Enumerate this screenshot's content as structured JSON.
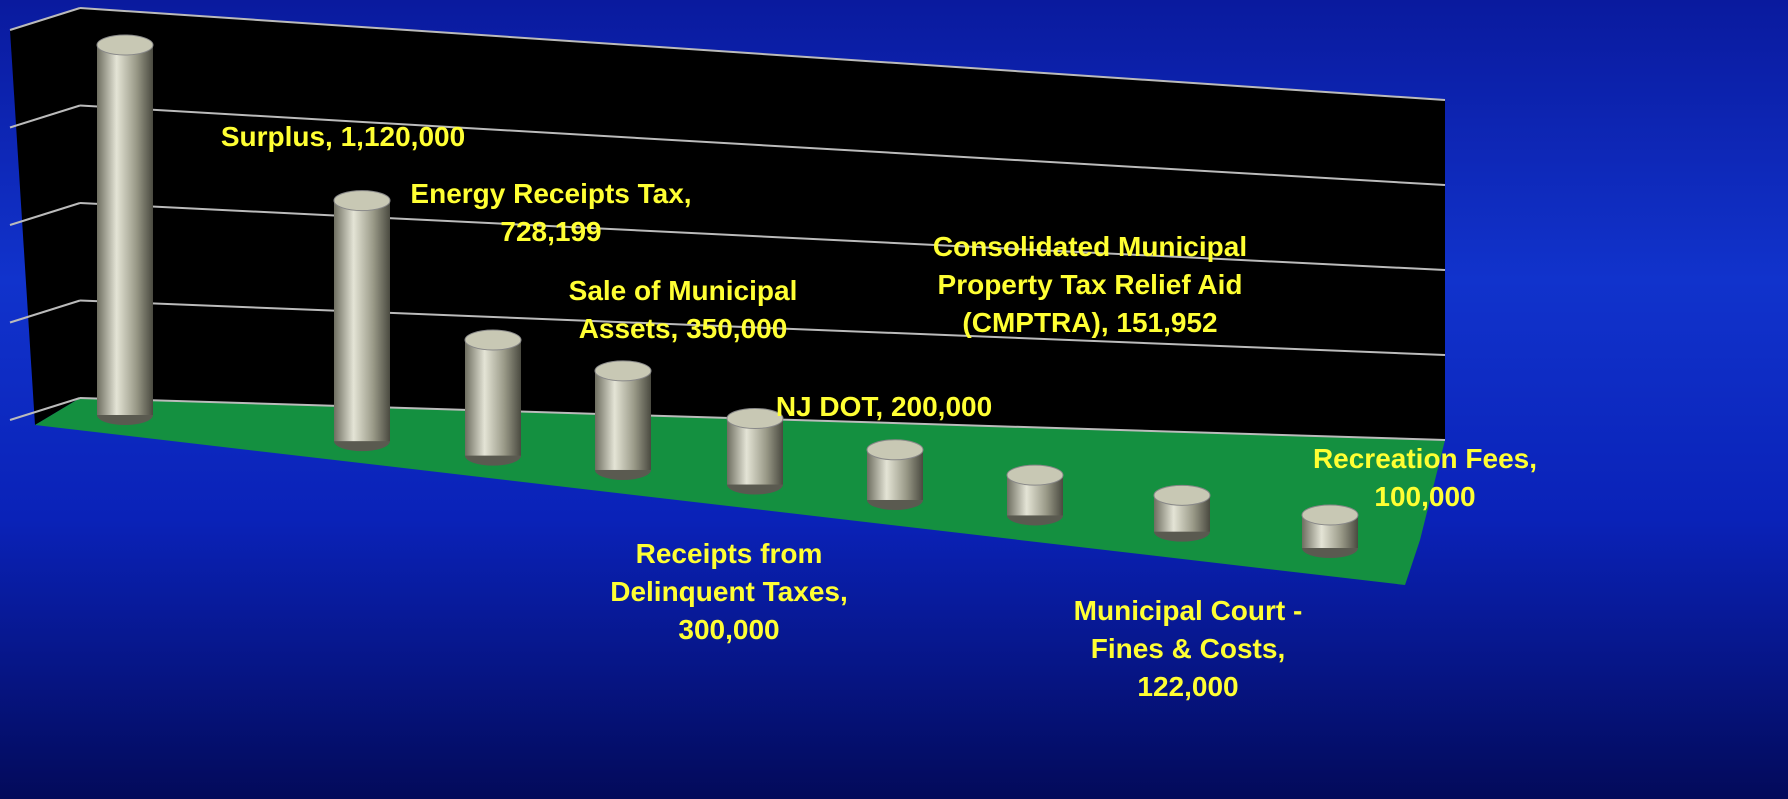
{
  "chart_data": {
    "type": "cylinder",
    "values": [
      1120000,
      728199,
      350000,
      300000,
      200000,
      151952,
      122000,
      110000,
      100000
    ],
    "value_labels": [
      "Surplus, 1,120,000",
      "Energy Receipts Tax, 728,199",
      "Sale of Municipal Assets, 350,000",
      "Receipts from Delinquent Taxes, 300,000",
      "NJ DOT, 200,000",
      "Consolidated Municipal Property Tax Relief Aid (CMPTRA), 151,952",
      "Municipal Court - Fines & Costs, 122,000",
      null,
      "Recreation Fees, 100,000"
    ],
    "ylim": [
      0,
      1200000
    ],
    "yticks": [
      0,
      300000,
      600000,
      900000,
      1200000
    ],
    "grid": true,
    "color": "#c8c8b4"
  }
}
